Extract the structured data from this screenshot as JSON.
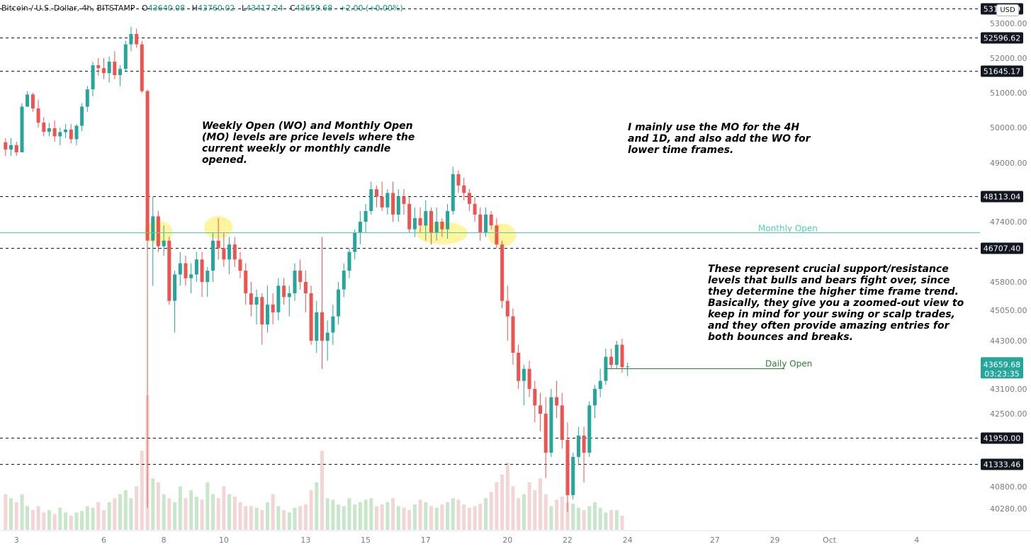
{
  "legend": {
    "symbol": "Bitcoin / U.S. Dollar, 4h, BITSTAMP",
    "o_label": "O",
    "o": "43640.08",
    "h_label": "H",
    "h": "43760.02",
    "l_label": "L",
    "l": "43417.24",
    "c_label": "C",
    "c": "43659.68",
    "change": "+2.00 (+0.00%)"
  },
  "currency": "USD",
  "annotations": {
    "note1": "Weekly Open (WO) and Monthly Open\n(MO) levels are price levels where the\ncurrent weekly or monthly candle\nopened.",
    "note2": "I mainly use the MO for the 4H\nand 1D, and also add the WO for\nlower time frames.",
    "note3": "These represent crucial support/resistance\nlevels that bulls and bears fight over, since\nthey determine the higher time frame trend.\nBasically, they give you a zoomed-out view to\nkeep in mind for your swing or scalp trades,\nand they often provide amazing entries for\nboth bounces and breaks."
  },
  "colors": {
    "up": "#26a69a",
    "down": "#ef5350",
    "volume_up": "#c8e6c9",
    "volume_down": "#f3d5d5",
    "monthly_open": "#4dd0b1",
    "daily_open": "#2e7d32",
    "highlight": "#fff176",
    "price_badge": "#26a69a"
  },
  "chart_data": {
    "type": "candlestick",
    "x_ticks": [
      {
        "label": "3",
        "bar": 2
      },
      {
        "label": "6",
        "bar": 18
      },
      {
        "label": "8",
        "bar": 29
      },
      {
        "label": "10",
        "bar": 40
      },
      {
        "label": "13",
        "bar": 55
      },
      {
        "label": "15",
        "bar": 66
      },
      {
        "label": "17",
        "bar": 77
      },
      {
        "label": "20",
        "bar": 92
      },
      {
        "label": "22",
        "bar": 103
      },
      {
        "label": "24",
        "bar": 114
      },
      {
        "label": "27",
        "bar": 130
      },
      {
        "label": "29",
        "bar": 141
      },
      {
        "label": "Oct",
        "bar": 151
      },
      {
        "label": "4",
        "bar": 167
      }
    ],
    "y_ticks": [
      "53000.00",
      "52000.00",
      "51000.00",
      "50000.00",
      "49000.00",
      "47400.00",
      "45800.00",
      "45050.00",
      "44300.00",
      "43100.00",
      "42500.00",
      "40800.00",
      "40280.00"
    ],
    "levels": [
      {
        "value": "53100.99",
        "style": "dashed"
      },
      {
        "value": "52596.62",
        "style": "dashed"
      },
      {
        "value": "51645.17",
        "style": "dashed"
      },
      {
        "value": "48113.04",
        "style": "dashed"
      },
      {
        "value": "46707.40",
        "style": "dashed"
      },
      {
        "value": "41950.00",
        "style": "dashed"
      },
      {
        "value": "41333.46",
        "style": "dashed"
      }
    ],
    "monthly_open": {
      "label": "Monthly Open",
      "value": 47120
    },
    "daily_open": {
      "label": "Daily Open",
      "value": 43610,
      "from_bar": 110
    },
    "last_price": {
      "value": "43659.68",
      "countdown": "03:23:35"
    },
    "highlights": [
      {
        "bar": 28,
        "price": 47120
      },
      {
        "bar": 39,
        "price": 47250
      },
      {
        "bar": 80,
        "price": 47100
      },
      {
        "bar": 91,
        "price": 47050
      }
    ],
    "candles": [
      [
        49580,
        49700,
        49200,
        49380
      ],
      [
        49380,
        49700,
        49200,
        49500
      ],
      [
        49500,
        49600,
        49200,
        49300
      ],
      [
        49300,
        50700,
        49300,
        50600
      ],
      [
        50600,
        51050,
        50600,
        50950
      ],
      [
        50950,
        51000,
        50450,
        50550
      ],
      [
        50550,
        50800,
        50000,
        50140
      ],
      [
        50140,
        50300,
        49750,
        49880
      ],
      [
        49880,
        50130,
        49750,
        49980
      ],
      [
        49980,
        50200,
        49600,
        49750
      ],
      [
        49750,
        50000,
        49500,
        49870
      ],
      [
        49870,
        50100,
        49700,
        49940
      ],
      [
        49940,
        50100,
        49550,
        49670
      ],
      [
        49670,
        50100,
        49500,
        50050
      ],
      [
        50050,
        50700,
        49900,
        50600
      ],
      [
        50600,
        51200,
        50450,
        51100
      ],
      [
        51100,
        51900,
        50900,
        51800
      ],
      [
        51800,
        52000,
        51500,
        51720
      ],
      [
        51720,
        52000,
        51400,
        51580
      ],
      [
        51580,
        52050,
        51300,
        51900
      ],
      [
        51900,
        52200,
        51400,
        51520
      ],
      [
        51520,
        51800,
        51200,
        51700
      ],
      [
        51700,
        52500,
        51650,
        52400
      ],
      [
        52400,
        52900,
        52200,
        52700
      ],
      [
        52700,
        52850,
        52300,
        52400
      ],
      [
        52400,
        52500,
        51000,
        51050
      ],
      [
        51050,
        51100,
        40300,
        46900
      ],
      [
        46900,
        48100,
        45700,
        47550
      ],
      [
        47550,
        47700,
        46600,
        46750
      ],
      [
        46750,
        47300,
        46500,
        46900
      ],
      [
        46900,
        47000,
        45200,
        45300
      ],
      [
        45300,
        46100,
        44500,
        46000
      ],
      [
        46000,
        46600,
        45700,
        46300
      ],
      [
        46300,
        46500,
        45700,
        45900
      ],
      [
        45900,
        46300,
        45500,
        46000
      ],
      [
        46000,
        46600,
        45800,
        46400
      ],
      [
        46400,
        46600,
        45400,
        45800
      ],
      [
        45800,
        46200,
        45400,
        46100
      ],
      [
        46100,
        47100,
        45800,
        46900
      ],
      [
        46900,
        47500,
        46400,
        46700
      ],
      [
        46700,
        47100,
        46200,
        46400
      ],
      [
        46400,
        47000,
        46000,
        46800
      ],
      [
        46800,
        47000,
        46200,
        46400
      ],
      [
        46400,
        46600,
        45900,
        46100
      ],
      [
        46100,
        46300,
        45200,
        45500
      ],
      [
        45500,
        45800,
        44900,
        45200
      ],
      [
        45200,
        45600,
        44700,
        45400
      ],
      [
        45400,
        45500,
        44200,
        44700
      ],
      [
        44700,
        45700,
        44500,
        45200
      ],
      [
        45200,
        45500,
        44700,
        45000
      ],
      [
        45000,
        45900,
        44800,
        45700
      ],
      [
        45700,
        45900,
        45200,
        45400
      ],
      [
        45400,
        45700,
        44900,
        45500
      ],
      [
        45500,
        46300,
        45300,
        46100
      ],
      [
        46100,
        46400,
        45600,
        45800
      ],
      [
        45800,
        46100,
        45000,
        45500
      ],
      [
        45500,
        45700,
        44200,
        44300
      ],
      [
        44300,
        45300,
        44000,
        45000
      ],
      [
        45000,
        47000,
        43600,
        44300
      ],
      [
        44300,
        44800,
        43800,
        44500
      ],
      [
        44500,
        45200,
        44200,
        44900
      ],
      [
        44900,
        45800,
        44700,
        45600
      ],
      [
        45600,
        46300,
        45400,
        46100
      ],
      [
        46100,
        46700,
        45900,
        46600
      ],
      [
        46600,
        47200,
        46400,
        47100
      ],
      [
        47100,
        47700,
        46800,
        47400
      ],
      [
        47400,
        47900,
        47100,
        47700
      ],
      [
        47700,
        48500,
        47600,
        48300
      ],
      [
        48300,
        48400,
        47800,
        48100
      ],
      [
        48100,
        48500,
        47700,
        47800
      ],
      [
        47800,
        48300,
        47600,
        48200
      ],
      [
        48200,
        48500,
        47400,
        47600
      ],
      [
        47600,
        48300,
        47400,
        48100
      ],
      [
        48100,
        48300,
        47600,
        47900
      ],
      [
        47900,
        48100,
        47100,
        47200
      ],
      [
        47200,
        47800,
        47000,
        47500
      ],
      [
        47500,
        47800,
        47100,
        47300
      ],
      [
        47300,
        48000,
        46900,
        47700
      ],
      [
        47700,
        47800,
        46800,
        47100
      ],
      [
        47100,
        47800,
        46900,
        47400
      ],
      [
        47400,
        47500,
        47000,
        47200
      ],
      [
        47200,
        47900,
        46950,
        47700
      ],
      [
        47700,
        48900,
        47600,
        48700
      ],
      [
        48700,
        48800,
        48200,
        48400
      ],
      [
        48400,
        48600,
        48000,
        48200
      ],
      [
        48200,
        48300,
        47700,
        47900
      ],
      [
        47900,
        48100,
        47400,
        47600
      ],
      [
        47600,
        47800,
        46900,
        47100
      ],
      [
        47100,
        47800,
        47000,
        47600
      ],
      [
        47600,
        47700,
        47200,
        47300
      ],
      [
        47300,
        47500,
        46700,
        46800
      ],
      [
        46800,
        46900,
        45100,
        45300
      ],
      [
        45300,
        45700,
        44300,
        44900
      ],
      [
        44900,
        45100,
        43700,
        44000
      ],
      [
        44000,
        44200,
        43100,
        43300
      ],
      [
        43300,
        43700,
        42700,
        43600
      ],
      [
        43600,
        43800,
        42900,
        43100
      ],
      [
        43100,
        43300,
        42300,
        42700
      ],
      [
        42700,
        43000,
        42100,
        42500
      ],
      [
        42500,
        42900,
        41000,
        41600
      ],
      [
        41600,
        43100,
        41500,
        42900
      ],
      [
        42900,
        43300,
        42400,
        42700
      ],
      [
        42700,
        43000,
        41700,
        41900
      ],
      [
        41900,
        42300,
        40200,
        40600
      ],
      [
        40600,
        41600,
        40500,
        41500
      ],
      [
        41500,
        42200,
        41300,
        42000
      ],
      [
        42000,
        42200,
        40900,
        41600
      ],
      [
        41600,
        42800,
        41500,
        42700
      ],
      [
        42700,
        43200,
        42400,
        43100
      ],
      [
        43100,
        43600,
        42900,
        43300
      ],
      [
        43300,
        44100,
        43200,
        43900
      ],
      [
        43900,
        44100,
        43600,
        43700
      ],
      [
        43700,
        44300,
        43600,
        44200
      ],
      [
        44200,
        44350,
        43500,
        43640
      ],
      [
        43640,
        43760,
        43417,
        43660
      ]
    ],
    "volumes": [
      45,
      40,
      35,
      45,
      30,
      25,
      30,
      22,
      25,
      20,
      28,
      22,
      18,
      22,
      24,
      30,
      28,
      35,
      25,
      35,
      40,
      45,
      50,
      40,
      55,
      100,
      170,
      65,
      60,
      45,
      40,
      35,
      55,
      40,
      50,
      42,
      38,
      60,
      45,
      40,
      55,
      45,
      42,
      35,
      30,
      30,
      28,
      25,
      35,
      45,
      30,
      25,
      22,
      28,
      30,
      32,
      50,
      60,
      100,
      40,
      38,
      32,
      30,
      40,
      32,
      35,
      38,
      40,
      30,
      32,
      35,
      40,
      30,
      28,
      25,
      32,
      38,
      35,
      30,
      28,
      32,
      35,
      40,
      38,
      32,
      28,
      30,
      33,
      40,
      48,
      60,
      70,
      85,
      55,
      40,
      45,
      60,
      50,
      65,
      45,
      30,
      38,
      42,
      35,
      33,
      28,
      25,
      30,
      35,
      28,
      22,
      25,
      25,
      18
    ]
  }
}
